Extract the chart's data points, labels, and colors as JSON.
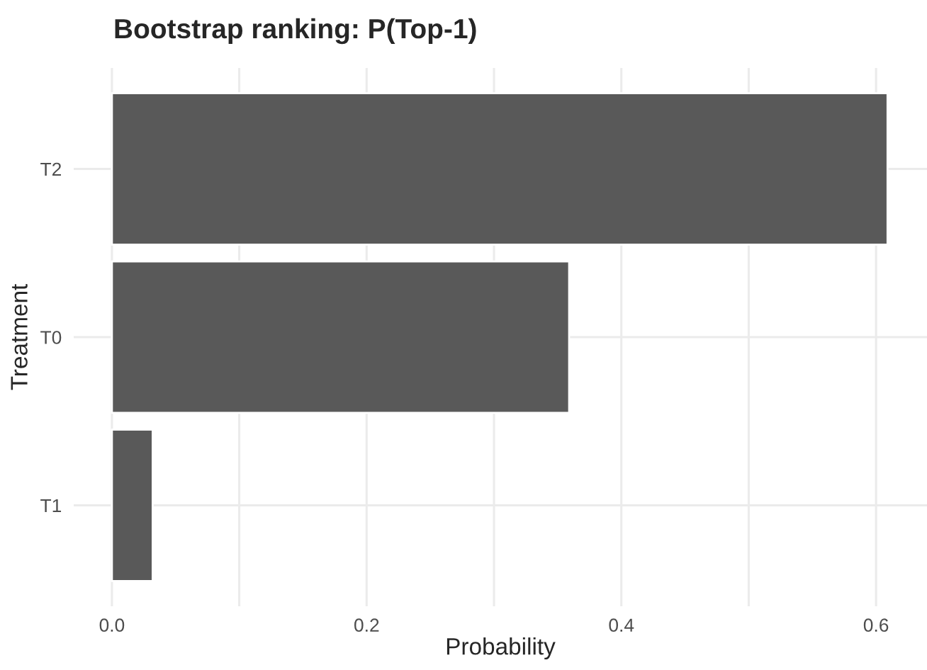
{
  "chart_data": {
    "type": "bar",
    "orientation": "horizontal",
    "title": "Bootstrap ranking: P(Top-1)",
    "xlabel": "Probability",
    "ylabel": "Treatment",
    "categories": [
      "T2",
      "T0",
      "T1"
    ],
    "series": [
      {
        "color": "#595959",
        "values": [
          0.609,
          0.359,
          0.032
        ]
      }
    ],
    "xlim": [
      -0.03,
      0.64
    ],
    "xticks": [
      {
        "value": 0.0,
        "label": "0.0"
      },
      {
        "value": 0.1,
        "label": null
      },
      {
        "value": 0.2,
        "label": "0.2"
      },
      {
        "value": 0.3,
        "label": null
      },
      {
        "value": 0.4,
        "label": "0.4"
      },
      {
        "value": 0.5,
        "label": null
      },
      {
        "value": 0.6,
        "label": "0.6"
      }
    ],
    "grid": true,
    "legend": false
  }
}
